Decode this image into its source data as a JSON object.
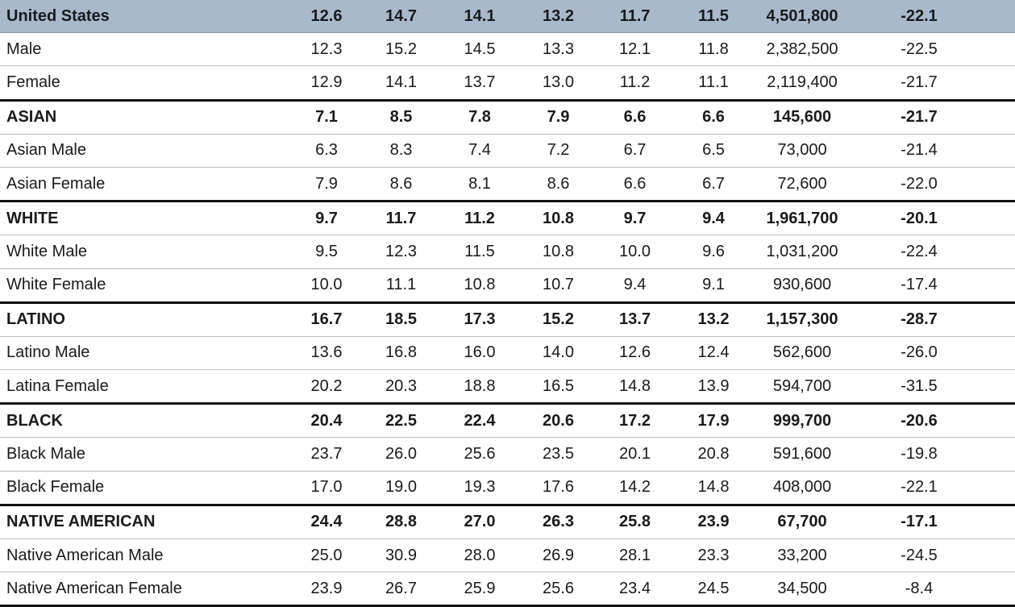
{
  "rows": [
    {
      "label": "United States",
      "kind": "us",
      "values": [
        "12.6",
        "14.7",
        "14.1",
        "13.2",
        "11.7",
        "11.5",
        "4,501,800",
        "-22.1"
      ]
    },
    {
      "label": "Male",
      "kind": "sub",
      "values": [
        "12.3",
        "15.2",
        "14.5",
        "13.3",
        "12.1",
        "11.8",
        "2,382,500",
        "-22.5"
      ]
    },
    {
      "label": "Female",
      "kind": "sub",
      "values": [
        "12.9",
        "14.1",
        "13.7",
        "13.0",
        "11.2",
        "11.1",
        "2,119,400",
        "-21.7"
      ]
    },
    {
      "label": "ASIAN",
      "kind": "group",
      "values": [
        "7.1",
        "8.5",
        "7.8",
        "7.9",
        "6.6",
        "6.6",
        "145,600",
        "-21.7"
      ]
    },
    {
      "label": "Asian Male",
      "kind": "sub",
      "values": [
        "6.3",
        "8.3",
        "7.4",
        "7.2",
        "6.7",
        "6.5",
        "73,000",
        "-21.4"
      ]
    },
    {
      "label": "Asian Female",
      "kind": "sub",
      "values": [
        "7.9",
        "8.6",
        "8.1",
        "8.6",
        "6.6",
        "6.7",
        "72,600",
        "-22.0"
      ]
    },
    {
      "label": "WHITE",
      "kind": "group",
      "values": [
        "9.7",
        "11.7",
        "11.2",
        "10.8",
        "9.7",
        "9.4",
        "1,961,700",
        "-20.1"
      ]
    },
    {
      "label": "White Male",
      "kind": "sub",
      "values": [
        "9.5",
        "12.3",
        "11.5",
        "10.8",
        "10.0",
        "9.6",
        "1,031,200",
        "-22.4"
      ]
    },
    {
      "label": "White Female",
      "kind": "sub",
      "values": [
        "10.0",
        "11.1",
        "10.8",
        "10.7",
        "9.4",
        "9.1",
        "930,600",
        "-17.4"
      ]
    },
    {
      "label": "LATINO",
      "kind": "group",
      "values": [
        "16.7",
        "18.5",
        "17.3",
        "15.2",
        "13.7",
        "13.2",
        "1,157,300",
        "-28.7"
      ]
    },
    {
      "label": "Latino Male",
      "kind": "sub",
      "values": [
        "13.6",
        "16.8",
        "16.0",
        "14.0",
        "12.6",
        "12.4",
        "562,600",
        "-26.0"
      ]
    },
    {
      "label": "Latina Female",
      "kind": "sub",
      "values": [
        "20.2",
        "20.3",
        "18.8",
        "16.5",
        "14.8",
        "13.9",
        "594,700",
        "-31.5"
      ]
    },
    {
      "label": "BLACK",
      "kind": "group",
      "values": [
        "20.4",
        "22.5",
        "22.4",
        "20.6",
        "17.2",
        "17.9",
        "999,700",
        "-20.6"
      ]
    },
    {
      "label": "Black Male",
      "kind": "sub",
      "values": [
        "23.7",
        "26.0",
        "25.6",
        "23.5",
        "20.1",
        "20.8",
        "591,600",
        "-19.8"
      ]
    },
    {
      "label": "Black Female",
      "kind": "sub",
      "values": [
        "17.0",
        "19.0",
        "19.3",
        "17.6",
        "14.2",
        "14.8",
        "408,000",
        "-22.1"
      ]
    },
    {
      "label": "NATIVE AMERICAN",
      "kind": "group",
      "values": [
        "24.4",
        "28.8",
        "27.0",
        "26.3",
        "25.8",
        "23.9",
        "67,700",
        "-17.1"
      ]
    },
    {
      "label": "Native American Male",
      "kind": "sub",
      "values": [
        "25.0",
        "30.9",
        "28.0",
        "26.9",
        "28.1",
        "23.3",
        "33,200",
        "-24.5"
      ]
    },
    {
      "label": "Native American Female",
      "kind": "sub",
      "values": [
        "23.9",
        "26.7",
        "25.9",
        "25.6",
        "23.4",
        "24.5",
        "34,500",
        "-8.4"
      ]
    }
  ]
}
